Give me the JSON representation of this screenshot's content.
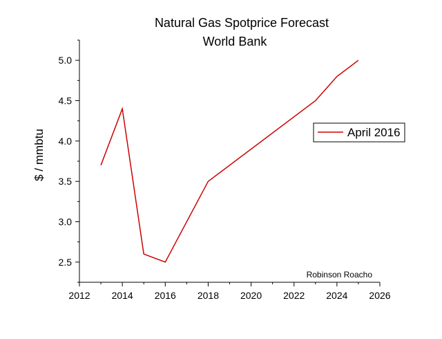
{
  "chart_data": {
    "type": "line",
    "title": "Natural Gas Spotprice Forecast",
    "subtitle": "World Bank",
    "xlabel": "",
    "ylabel": "$ / mmbtu",
    "xlim": [
      2012,
      2026
    ],
    "ylim": [
      2.25,
      5.25
    ],
    "x_ticks": [
      2012,
      2014,
      2016,
      2018,
      2020,
      2022,
      2024,
      2026
    ],
    "y_ticks": [
      2.5,
      3.0,
      3.5,
      4.0,
      4.5,
      5.0
    ],
    "y_tick_labels": [
      "2.5",
      "3.0",
      "3.5",
      "4.0",
      "4.5",
      "5.0"
    ],
    "grid": false,
    "legend_position": "right",
    "series": [
      {
        "name": "April 2016",
        "color": "#cc0000",
        "x": [
          2013,
          2014,
          2015,
          2016,
          2018,
          2023,
          2024,
          2025
        ],
        "values": [
          3.7,
          4.4,
          2.6,
          2.5,
          3.5,
          4.5,
          4.8,
          5.0
        ]
      }
    ],
    "annotation": "Robinson Roacho"
  }
}
